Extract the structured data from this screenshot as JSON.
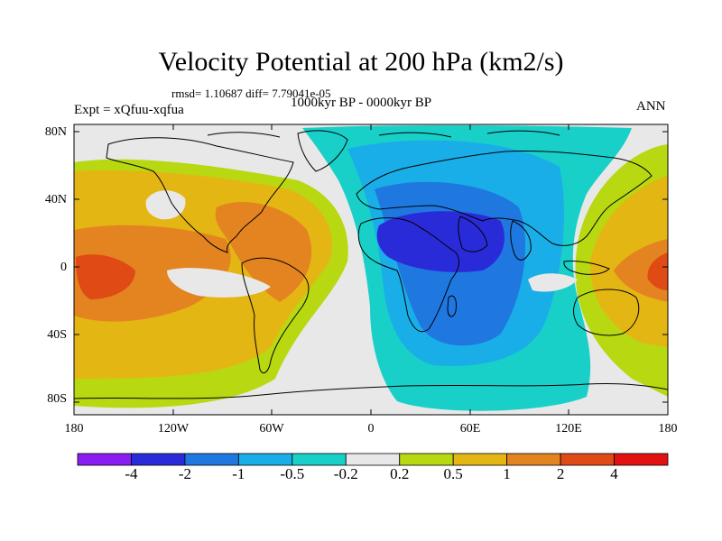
{
  "title": "Velocity Potential at 200 hPa (km2/s)",
  "stats": "rmsd= 1.10687 diff= 7.79041e-05",
  "expt": "Expt = xQfuu-xqfua",
  "period": "1000kyr BP - 0000kyr BP",
  "season": "ANN",
  "lat_ticks": [
    "80N",
    "40N",
    "0",
    "40S",
    "80S"
  ],
  "lon_ticks": [
    "180",
    "120W",
    "60W",
    "0",
    "60E",
    "120E",
    "180"
  ],
  "colorbar": {
    "labels": [
      "-4",
      "-2",
      "-1",
      "-0.5",
      "-0.2",
      "0.2",
      "0.5",
      "1",
      "2",
      "4"
    ],
    "colors": [
      "#8a1ef0",
      "#2a2bd8",
      "#1f78e0",
      "#1aaee8",
      "#18d0c8",
      "#e8e8e8",
      "#b8d812",
      "#e4b614",
      "#e48420",
      "#e04a14",
      "#e21212"
    ]
  },
  "map_colors": {
    "neutral": "#e8e8e8",
    "pos_lvl1": "#b8d812",
    "pos_lvl2": "#e4b614",
    "pos_lvl3": "#e48420",
    "pos_lvl4": "#e04a14",
    "neg_lvl1": "#18d0c8",
    "neg_lvl2": "#1aaee8",
    "neg_lvl3": "#1f78e0",
    "neg_lvl4": "#2a2bd8",
    "coast": "#000000"
  }
}
